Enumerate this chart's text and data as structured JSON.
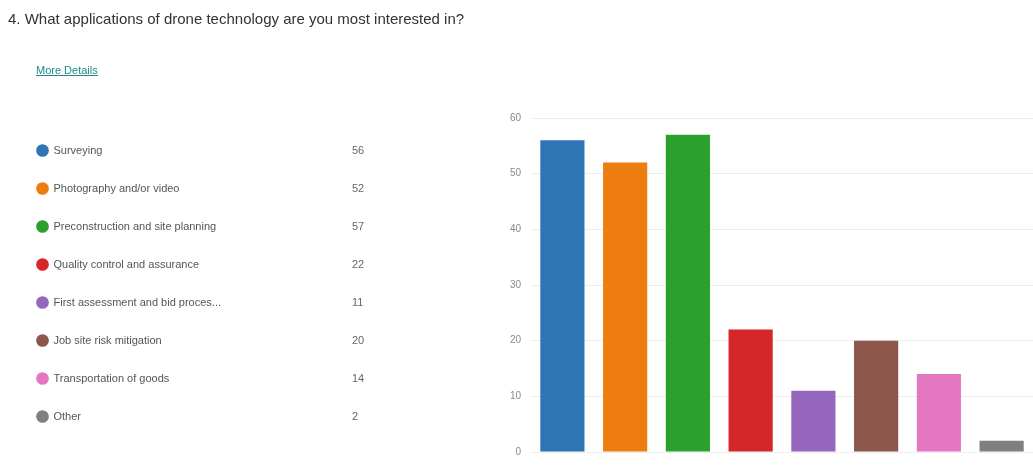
{
  "chart_data": {
    "type": "bar",
    "title": "4. What applications of drone technology are you most interested in?",
    "annotations": [
      "More Details",
      "56",
      "52",
      "57",
      "22",
      "11",
      "20",
      "14",
      "2"
    ],
    "categories": [
      null,
      null,
      null,
      null,
      null,
      null,
      null,
      null
    ],
    "series": [
      {
        "name": "Surveying",
        "color": "#2e75b6",
        "values": [
          56,
          null,
          null,
          null,
          null,
          null,
          null,
          null
        ]
      },
      {
        "name": "Photography and/or video",
        "color": "#ed7d0f",
        "values": [
          null,
          52,
          null,
          null,
          null,
          null,
          null,
          null
        ]
      },
      {
        "name": "Preconstruction and site planning",
        "color": "#2ca02c",
        "values": [
          null,
          null,
          57,
          null,
          null,
          null,
          null,
          null
        ]
      },
      {
        "name": "Quality control and assurance",
        "color": "#d62728",
        "values": [
          null,
          null,
          null,
          22,
          null,
          null,
          null,
          null
        ]
      },
      {
        "name": "First assessment and bid proces...",
        "color": "#9467bd",
        "values": [
          null,
          null,
          null,
          null,
          11,
          null,
          null,
          null
        ]
      },
      {
        "name": "Job site risk mitigation",
        "color": "#8c564b",
        "values": [
          null,
          null,
          null,
          null,
          null,
          20,
          null,
          null
        ]
      },
      {
        "name": "Transportation of goods",
        "color": "#e377c2",
        "values": [
          null,
          null,
          null,
          null,
          null,
          null,
          14,
          null
        ]
      },
      {
        "name": "Other",
        "color": "#7f7f7f",
        "values": [
          null,
          null,
          null,
          null,
          null,
          null,
          null,
          2
        ]
      }
    ],
    "ylim": [
      0,
      60
    ],
    "yticks": [
      0,
      10,
      20,
      30,
      40,
      50,
      60
    ],
    "grid": "y",
    "legend": "left",
    "tick_labels": "y"
  }
}
